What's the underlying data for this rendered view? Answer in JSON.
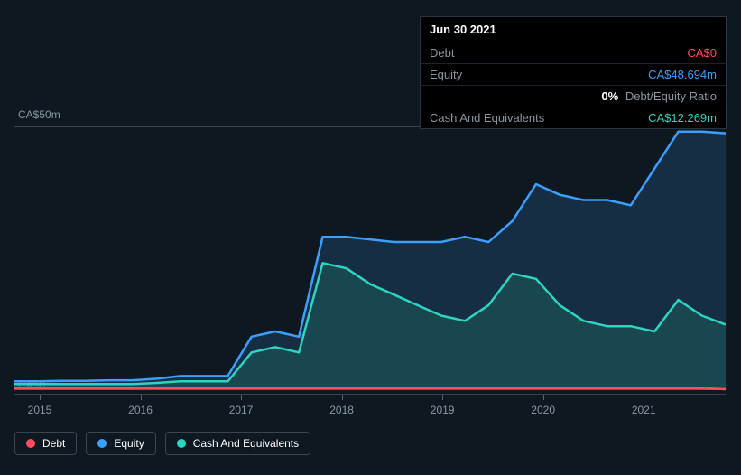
{
  "chart": {
    "type": "area",
    "background_color": "#0d1821",
    "grid_color": "#3a4550",
    "axis_text_color": "#8b97a3",
    "ylim": [
      0,
      50
    ],
    "y_labels": {
      "top": "CA$50m",
      "bottom": "CA$0"
    },
    "x_categories": [
      "2015",
      "2016",
      "2017",
      "2018",
      "2019",
      "2020",
      "2021"
    ],
    "tooltip": {
      "date": "Jun 30 2021",
      "rows": [
        {
          "label": "Debt",
          "value": "CA$0",
          "color": "red"
        },
        {
          "label": "Equity",
          "value": "CA$48.694m",
          "color": "blue"
        },
        {
          "label": "",
          "value_pct": "0%",
          "value_sfx": "Debt/Equity Ratio"
        },
        {
          "label": "Cash And Equivalents",
          "value": "CA$12.269m",
          "color": "teal"
        }
      ]
    },
    "series": {
      "debt": {
        "name": "Debt",
        "color": "#ff4d5e",
        "fill": "none",
        "values": [
          0.2,
          0.2,
          0.2,
          0.2,
          0.2,
          0.2,
          0.2,
          0.2,
          0.2,
          0.2,
          0.2,
          0.2,
          0.2,
          0.2,
          0.2,
          0.2,
          0.2,
          0.2,
          0.2,
          0.2,
          0.2,
          0.2,
          0.2,
          0.2,
          0.2,
          0.2,
          0.2,
          0.0
        ]
      },
      "equity": {
        "name": "Equity",
        "color": "#3b9fff",
        "fill": "rgba(35,80,120,0.40)",
        "values": [
          1.5,
          1.5,
          1.6,
          1.6,
          1.7,
          1.7,
          2.0,
          2.5,
          2.5,
          2.5,
          10,
          11,
          10,
          29,
          29,
          28.5,
          28,
          28,
          28,
          29,
          28,
          32,
          39,
          37,
          36,
          36,
          35,
          42,
          49,
          49,
          48.7
        ]
      },
      "cash": {
        "name": "Cash And Equivalents",
        "color": "#2dd4bf",
        "fill": "rgba(30,110,100,0.40)",
        "values": [
          1.0,
          1.0,
          1.0,
          1.0,
          1.0,
          1.0,
          1.2,
          1.5,
          1.5,
          1.5,
          7,
          8,
          7,
          24,
          23,
          20,
          18,
          16,
          14,
          13,
          16,
          22,
          21,
          16,
          13,
          12,
          12,
          11,
          17,
          14,
          12.3
        ]
      }
    },
    "legend": [
      {
        "key": "debt",
        "label": "Debt"
      },
      {
        "key": "equity",
        "label": "Equity"
      },
      {
        "key": "cash",
        "label": "Cash And Equivalents"
      }
    ]
  }
}
